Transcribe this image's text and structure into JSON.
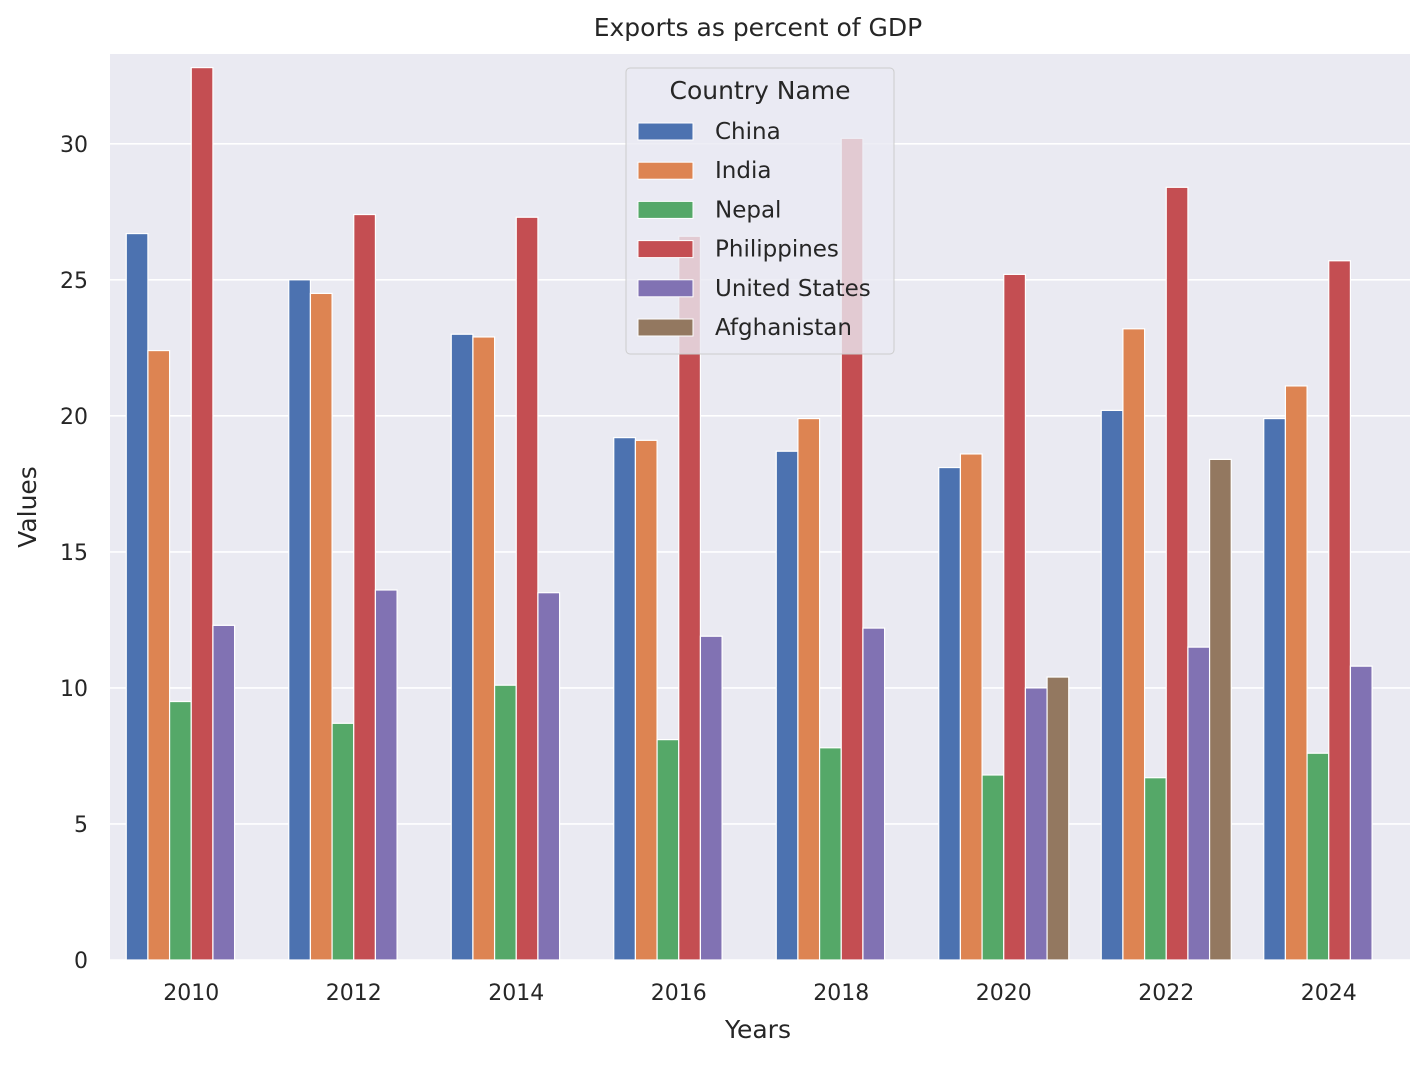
{
  "chart_data": {
    "type": "bar",
    "title": "Exports as percent of GDP",
    "xlabel": "Years",
    "ylabel": "Values",
    "ylim": [
      0,
      33.3
    ],
    "yticks": [
      0,
      5,
      10,
      15,
      20,
      25,
      30
    ],
    "grid": true,
    "categories": [
      "2010",
      "2012",
      "2014",
      "2016",
      "2018",
      "2020",
      "2022",
      "2024"
    ],
    "legend": {
      "title": "Country Name",
      "placement": "upper-center"
    },
    "series": [
      {
        "name": "China",
        "color": "#4C72B0",
        "values": [
          26.7,
          25.0,
          23.0,
          19.2,
          18.7,
          18.1,
          20.2,
          19.9
        ]
      },
      {
        "name": "India",
        "color": "#DD8452",
        "values": [
          22.4,
          24.5,
          22.9,
          19.1,
          19.9,
          18.6,
          23.2,
          21.1
        ]
      },
      {
        "name": "Nepal",
        "color": "#55A868",
        "values": [
          9.5,
          8.7,
          10.1,
          8.1,
          7.8,
          6.8,
          6.7,
          7.6
        ]
      },
      {
        "name": "Philippines",
        "color": "#C44E52",
        "values": [
          32.8,
          27.4,
          27.3,
          26.6,
          30.2,
          25.2,
          28.4,
          25.7
        ]
      },
      {
        "name": "United States",
        "color": "#8172B3",
        "values": [
          12.3,
          13.6,
          13.5,
          11.9,
          12.2,
          10.0,
          11.5,
          10.8
        ]
      },
      {
        "name": "Afghanistan",
        "color": "#937860",
        "values": [
          null,
          null,
          null,
          null,
          null,
          10.4,
          18.4,
          null
        ]
      }
    ]
  }
}
